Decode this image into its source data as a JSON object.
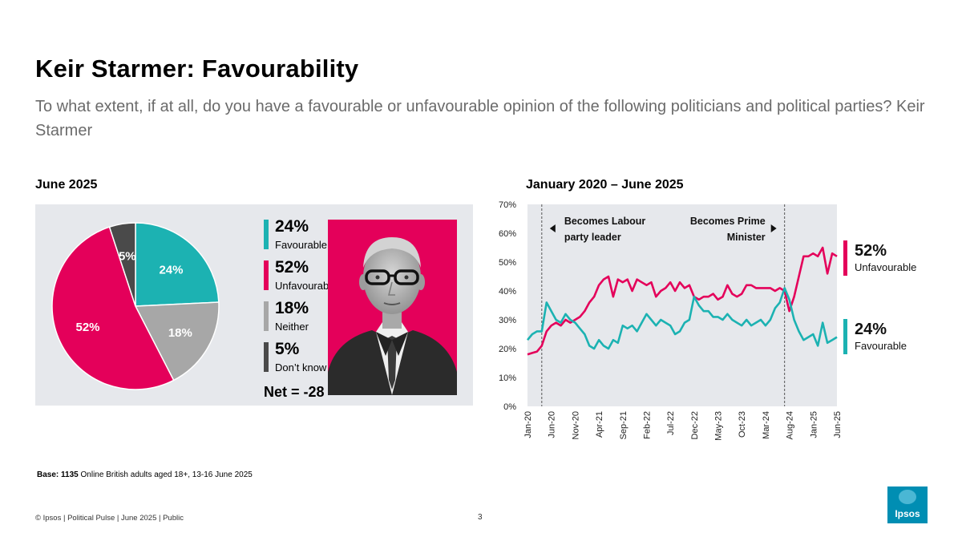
{
  "title": "Keir Starmer: Favourability",
  "subtitle": "To what extent, if at all, do you have a favourable or unfavourable opinion of the following politicians and political parties? Keir Starmer",
  "left_heading": "June 2025",
  "right_heading": "January 2020 – June 2025",
  "legend": [
    {
      "pct": "24%",
      "label": "Favourable",
      "color": "#1cb2b2"
    },
    {
      "pct": "52%",
      "label": "Unfavourable",
      "color": "#e4005a"
    },
    {
      "pct": "18%",
      "label": "Neither",
      "color": "#a7a7a7"
    },
    {
      "pct": "5%",
      "label": "Don’t know",
      "color": "#4a4a4a"
    }
  ],
  "net": "Net = -28",
  "line_end_labels": {
    "unfavourable": {
      "pct": "52%",
      "label": "Unfavourable"
    },
    "favourable": {
      "pct": "24%",
      "label": "Favourable"
    }
  },
  "annotations": {
    "leader": [
      "Becomes Labour",
      "party leader"
    ],
    "pm": [
      "Becomes Prime",
      "Minister"
    ]
  },
  "base": {
    "label": "Base:",
    "n": "1135",
    "text": "Online British adults aged 18+,  13-16 June 2025"
  },
  "footer": "© Ipsos | Political Pulse | June 2025 | Public",
  "page_number": "3",
  "logo_text": "Ipsos",
  "photo_icon": "person-portrait-icon",
  "chart_data": [
    {
      "type": "pie",
      "title": "June 2025",
      "slices": [
        {
          "label": "Favourable",
          "value": 24,
          "display": "24%",
          "color": "#1cb2b2"
        },
        {
          "label": "Neither",
          "value": 18,
          "display": "18%",
          "color": "#a7a7a7"
        },
        {
          "label": "Unfavourable",
          "value": 52,
          "display": "52%",
          "color": "#e4005a"
        },
        {
          "label": "Don't know",
          "value": 5,
          "display": "5%",
          "color": "#4a4a4a"
        }
      ]
    },
    {
      "type": "line",
      "title": "January 2020 – June 2025",
      "x_ticks": [
        "Jan-20",
        "Jun-20",
        "Nov-20",
        "Apr-21",
        "Sep-21",
        "Feb-22",
        "Jul-22",
        "Dec-22",
        "May-23",
        "Oct-23",
        "Mar-24",
        "Aug-24",
        "Jan-25",
        "Jun-25"
      ],
      "y_ticks": [
        "0%",
        "10%",
        "20%",
        "30%",
        "40%",
        "50%",
        "60%",
        "70%"
      ],
      "ylim": [
        0,
        70
      ],
      "xlim": [
        0,
        65
      ],
      "events": [
        {
          "label": "Becomes Labour party leader",
          "month_index": 3
        },
        {
          "label": "Becomes Prime Minister",
          "month_index": 54
        }
      ],
      "series": [
        {
          "name": "Unfavourable",
          "color": "#e4005a",
          "points": [
            [
              0,
              18
            ],
            [
              1,
              18.5
            ],
            [
              2,
              19
            ],
            [
              3,
              21
            ],
            [
              4,
              26
            ],
            [
              5,
              28
            ],
            [
              6,
              29
            ],
            [
              7,
              28
            ],
            [
              8,
              30
            ],
            [
              9,
              29
            ],
            [
              10,
              30
            ],
            [
              11,
              31
            ],
            [
              12,
              33
            ],
            [
              13,
              36
            ],
            [
              14,
              38
            ],
            [
              15,
              42
            ],
            [
              16,
              44
            ],
            [
              17,
              45
            ],
            [
              18,
              38
            ],
            [
              19,
              44
            ],
            [
              20,
              43
            ],
            [
              21,
              44
            ],
            [
              22,
              40
            ],
            [
              23,
              44
            ],
            [
              24,
              43
            ],
            [
              25,
              42
            ],
            [
              26,
              43
            ],
            [
              27,
              38
            ],
            [
              28,
              40
            ],
            [
              29,
              41
            ],
            [
              30,
              43
            ],
            [
              31,
              40
            ],
            [
              32,
              43
            ],
            [
              33,
              41
            ],
            [
              34,
              42
            ],
            [
              35,
              38
            ],
            [
              36,
              37
            ],
            [
              37,
              38
            ],
            [
              38,
              38
            ],
            [
              39,
              39
            ],
            [
              40,
              37
            ],
            [
              41,
              38
            ],
            [
              42,
              42
            ],
            [
              43,
              39
            ],
            [
              44,
              38
            ],
            [
              45,
              39
            ],
            [
              46,
              42
            ],
            [
              47,
              42
            ],
            [
              48,
              41
            ],
            [
              49,
              41
            ],
            [
              50,
              41
            ],
            [
              51,
              41
            ],
            [
              52,
              40
            ],
            [
              53,
              41
            ],
            [
              54,
              40
            ],
            [
              55,
              33
            ],
            [
              56,
              38
            ],
            [
              57,
              45
            ],
            [
              58,
              52
            ],
            [
              59,
              52
            ],
            [
              60,
              53
            ],
            [
              61,
              52
            ],
            [
              62,
              55
            ],
            [
              63,
              46
            ],
            [
              64,
              53
            ],
            [
              65,
              52
            ]
          ]
        },
        {
          "name": "Favourable",
          "color": "#1cb2b2",
          "points": [
            [
              0,
              23
            ],
            [
              1,
              25
            ],
            [
              2,
              26
            ],
            [
              3,
              26
            ],
            [
              4,
              36
            ],
            [
              5,
              33
            ],
            [
              6,
              30
            ],
            [
              7,
              29
            ],
            [
              8,
              32
            ],
            [
              9,
              30
            ],
            [
              10,
              29
            ],
            [
              11,
              27
            ],
            [
              12,
              25
            ],
            [
              13,
              21
            ],
            [
              14,
              20
            ],
            [
              15,
              23
            ],
            [
              16,
              21
            ],
            [
              17,
              20
            ],
            [
              18,
              23
            ],
            [
              19,
              22
            ],
            [
              20,
              28
            ],
            [
              21,
              27
            ],
            [
              22,
              28
            ],
            [
              23,
              26
            ],
            [
              24,
              29
            ],
            [
              25,
              32
            ],
            [
              26,
              30
            ],
            [
              27,
              28
            ],
            [
              28,
              30
            ],
            [
              29,
              29
            ],
            [
              30,
              28
            ],
            [
              31,
              25
            ],
            [
              32,
              26
            ],
            [
              33,
              29
            ],
            [
              34,
              30
            ],
            [
              35,
              38
            ],
            [
              36,
              35
            ],
            [
              37,
              33
            ],
            [
              38,
              33
            ],
            [
              39,
              31
            ],
            [
              40,
              31
            ],
            [
              41,
              30
            ],
            [
              42,
              32
            ],
            [
              43,
              30
            ],
            [
              44,
              29
            ],
            [
              45,
              28
            ],
            [
              46,
              30
            ],
            [
              47,
              28
            ],
            [
              48,
              29
            ],
            [
              49,
              30
            ],
            [
              50,
              28
            ],
            [
              51,
              30
            ],
            [
              52,
              34
            ],
            [
              53,
              36
            ],
            [
              54,
              41
            ],
            [
              55,
              37
            ],
            [
              56,
              30
            ],
            [
              57,
              26
            ],
            [
              58,
              23
            ],
            [
              59,
              24
            ],
            [
              60,
              25
            ],
            [
              61,
              21
            ],
            [
              62,
              29
            ],
            [
              63,
              22
            ],
            [
              64,
              23
            ],
            [
              65,
              24
            ]
          ]
        }
      ]
    }
  ]
}
